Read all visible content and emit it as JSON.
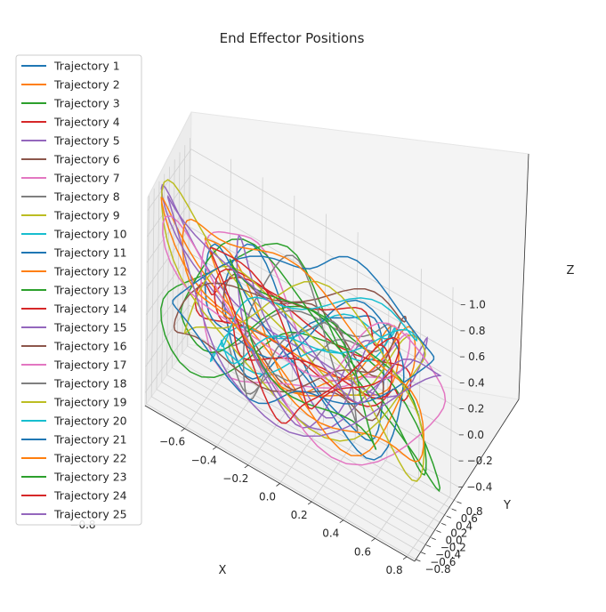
{
  "chart_data": {
    "type": "line",
    "projection": "3d",
    "title": "End Effector Positions",
    "xlabel": "X",
    "ylabel": "Y",
    "zlabel": "Z",
    "xlim": [
      -0.85,
      0.85
    ],
    "ylim": [
      -0.85,
      0.85
    ],
    "zlim": [
      -0.5,
      1.1
    ],
    "xticks": [
      "−0.6",
      "−0.4",
      "−0.2",
      "0.0",
      "0.2",
      "0.4",
      "0.6",
      "0.8"
    ],
    "yticks": [
      "−0.8",
      "−0.6",
      "−0.4",
      "−0.2",
      "0.0",
      "0.2",
      "0.4",
      "0.6",
      "0.8"
    ],
    "zticks": [
      "−0.4",
      "−0.2",
      "0.0",
      "0.2",
      "0.4",
      "0.6",
      "0.8",
      "1.0"
    ],
    "xtick_values": [
      -0.6,
      -0.4,
      -0.2,
      0.0,
      0.2,
      0.4,
      0.6,
      0.8
    ],
    "ytick_values": [
      -0.8,
      -0.6,
      -0.4,
      -0.2,
      0.0,
      0.2,
      0.4,
      0.6,
      0.8
    ],
    "ztick_values": [
      -0.4,
      -0.2,
      0.0,
      0.2,
      0.4,
      0.6,
      0.8,
      1.0
    ],
    "x_edge_label": "−0.8",
    "grid": true,
    "legend_position": "left",
    "colors": [
      "#1f77b4",
      "#ff7f0e",
      "#2ca02c",
      "#d62728",
      "#9467bd",
      "#8c564b",
      "#e377c2",
      "#7f7f7f",
      "#bcbd22",
      "#17becf"
    ],
    "series": [
      {
        "name": "Trajectory 1"
      },
      {
        "name": "Trajectory 2"
      },
      {
        "name": "Trajectory 3"
      },
      {
        "name": "Trajectory 4"
      },
      {
        "name": "Trajectory 5"
      },
      {
        "name": "Trajectory 6"
      },
      {
        "name": "Trajectory 7"
      },
      {
        "name": "Trajectory 8"
      },
      {
        "name": "Trajectory 9"
      },
      {
        "name": "Trajectory 10"
      },
      {
        "name": "Trajectory 11"
      },
      {
        "name": "Trajectory 12"
      },
      {
        "name": "Trajectory 13"
      },
      {
        "name": "Trajectory 14"
      },
      {
        "name": "Trajectory 15"
      },
      {
        "name": "Trajectory 16"
      },
      {
        "name": "Trajectory 17"
      },
      {
        "name": "Trajectory 18"
      },
      {
        "name": "Trajectory 19"
      },
      {
        "name": "Trajectory 20"
      },
      {
        "name": "Trajectory 21"
      },
      {
        "name": "Trajectory 22"
      },
      {
        "name": "Trajectory 23"
      },
      {
        "name": "Trajectory 24"
      },
      {
        "name": "Trajectory 25"
      }
    ]
  }
}
